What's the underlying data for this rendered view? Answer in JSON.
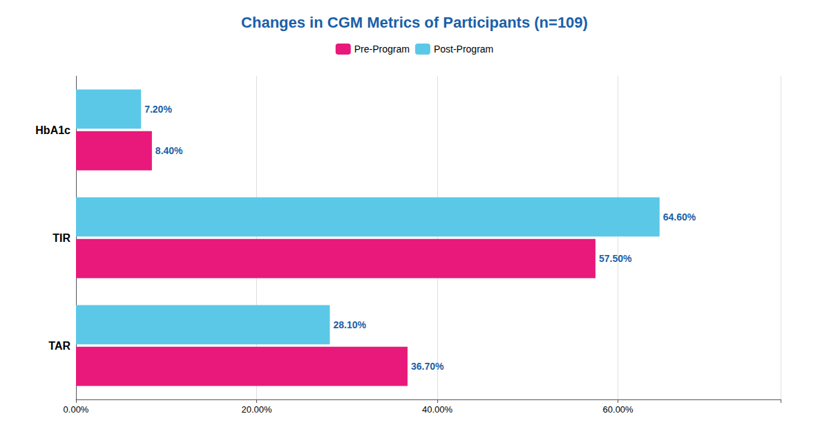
{
  "chart_data": {
    "type": "bar",
    "orientation": "horizontal",
    "title": "Changes in CGM Metrics of Participants (n=109)",
    "categories": [
      "TAR",
      "TIR",
      "HbA1c"
    ],
    "series": [
      {
        "name": "Pre-Program",
        "color": "#E8197A",
        "values": [
          36.7,
          57.5,
          8.4
        ],
        "value_labels": [
          "36.70%",
          "57.50%",
          "8.40%"
        ]
      },
      {
        "name": "Post-Program",
        "color": "#5BC8E8",
        "values": [
          28.1,
          64.6,
          7.2
        ],
        "value_labels": [
          "28.10%",
          "64.60%",
          "7.20%"
        ]
      }
    ],
    "xlim": [
      0,
      78
    ],
    "xticks": [
      {
        "value": 0,
        "label": "0.00%"
      },
      {
        "value": 20,
        "label": "20.00%"
      },
      {
        "value": 40,
        "label": "40.00%"
      },
      {
        "value": 60,
        "label": "60.00%"
      }
    ],
    "grid": true,
    "legend": "top",
    "data_labels": true
  }
}
